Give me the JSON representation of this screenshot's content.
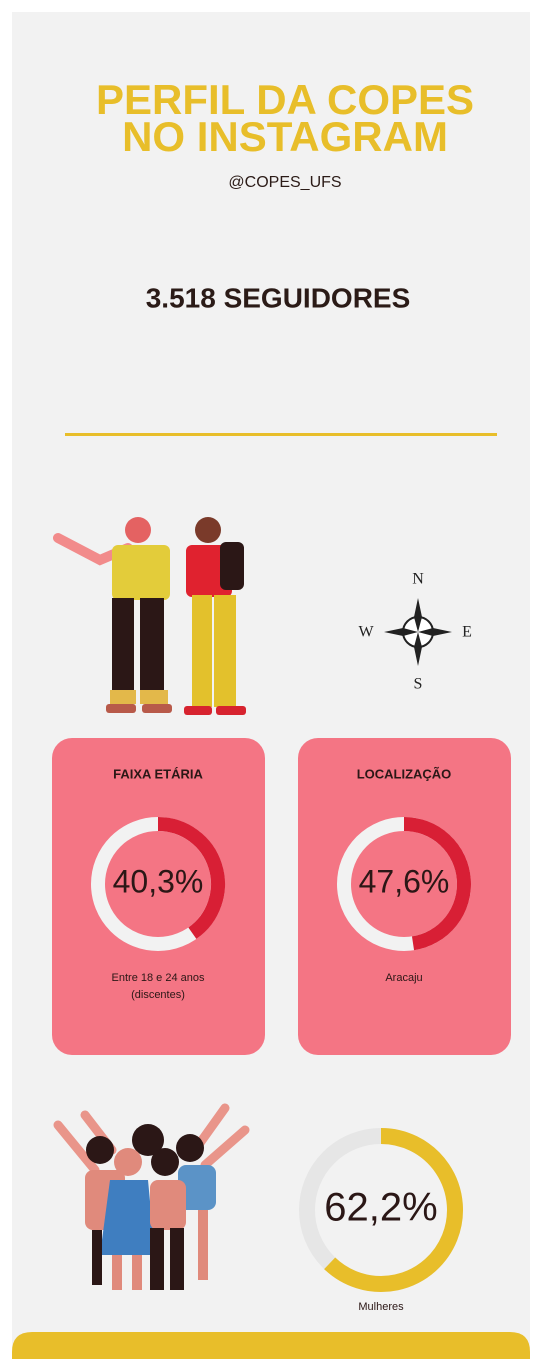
{
  "header": {
    "title": [
      "PERFIL DA COPES",
      "NO INSTAGRAM"
    ],
    "handle": "@COPES_UFS"
  },
  "followers": "3.518 SEGUIDORES",
  "compass": {
    "north": "N",
    "west": "W",
    "east": "E",
    "south": "S"
  },
  "cards": [
    {
      "title": "FAIXA ETÁRIA",
      "value": 40.3,
      "value_label": "40,3%",
      "caption": [
        "Entre 18 e 24 anos",
        "(discentes)"
      ]
    },
    {
      "title": "LOCALIZAÇÃO",
      "value": 47.6,
      "value_label": "47,6%",
      "caption": [
        "Aracaju"
      ]
    }
  ],
  "gender": {
    "value": 62.2,
    "value_label": "62,2%",
    "caption": "Mulheres"
  }
}
